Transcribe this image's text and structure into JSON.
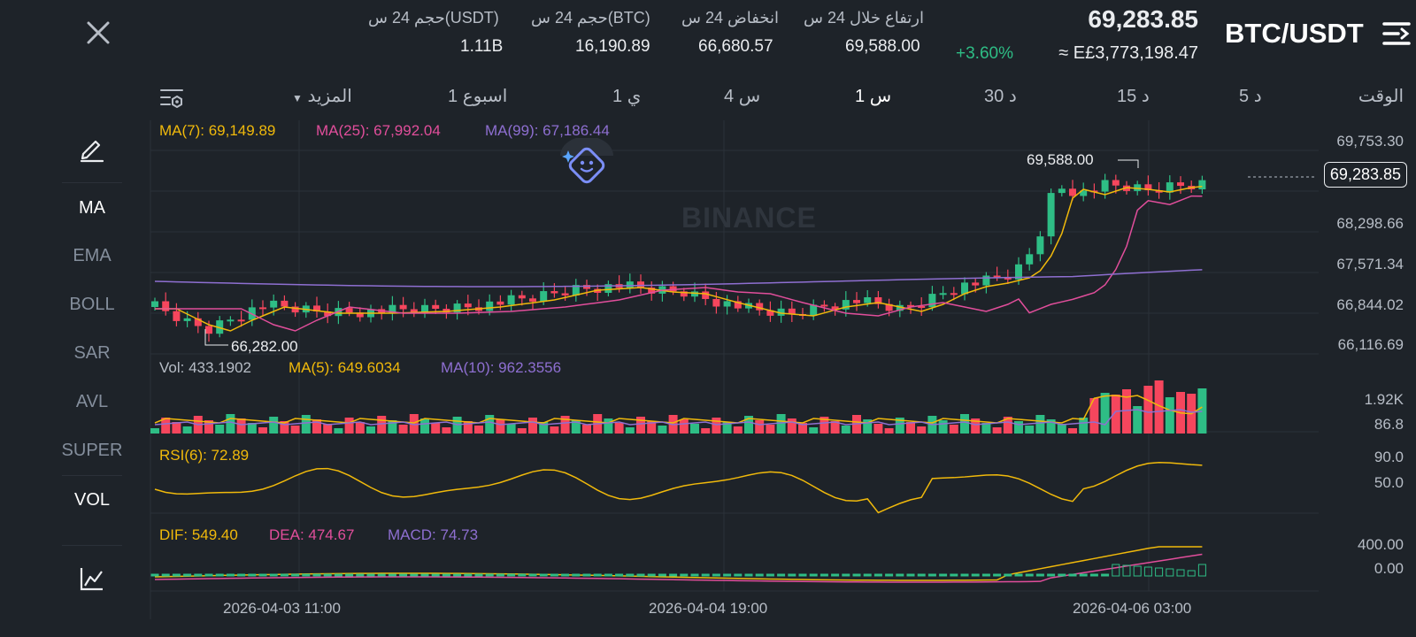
{
  "header": {
    "pair": "BTC/USDT",
    "price": "69,283.85",
    "change": "+3.60%",
    "fiat": "≈ E£3,773,198.47",
    "stats": [
      {
        "label": "ارتفاع خلال 24 س",
        "value": "69,588.00"
      },
      {
        "label": "انخفاض 24 س",
        "value": "66,680.57"
      },
      {
        "label": "حجم 24 س(BTC)",
        "value": "16,190.89"
      },
      {
        "label": "حجم 24 س(USDT)",
        "value": "1.11B"
      }
    ]
  },
  "timeframes": {
    "time_label": "الوقت",
    "items": [
      "5 د",
      "15 د",
      "30 د",
      "1 س",
      "4 س",
      "1 ي",
      "1 اسبوع"
    ],
    "more": "المزيد",
    "active": "1 س"
  },
  "sidebar": {
    "items": [
      "MA",
      "EMA",
      "BOLL",
      "SAR",
      "AVL",
      "SUPER",
      "VOL"
    ],
    "active": [
      "MA",
      "VOL"
    ]
  },
  "indicators": {
    "ma7": "MA(7): 69,149.89",
    "ma25": "MA(25): 67,992.04",
    "ma99": "MA(99): 67,186.44",
    "vol": "Vol: 433.1902",
    "vol_ma5": "MA(5): 649.6034",
    "vol_ma10": "MA(10): 962.3556",
    "rsi": "RSI(6): 72.89",
    "dif": "DIF: 549.40",
    "dea": "DEA: 474.67",
    "macd": "MACD: 74.73"
  },
  "watermark": "BINANCE",
  "chart_data": {
    "type": "candlestick",
    "price_axis": [
      "69,753.30",
      "68,298.66",
      "67,571.34",
      "66,844.02",
      "66,116.69"
    ],
    "current_price": "69,283.85",
    "high_label": "69,588.00",
    "low_label": "66,282.00",
    "volume_axis": [
      "1.92K",
      "86.8"
    ],
    "rsi_axis": [
      "90.0",
      "50.0"
    ],
    "macd_axis": [
      "400.00",
      "0.00"
    ],
    "x_labels": [
      "2026-04-03 11:00",
      "2026-04-04 19:00",
      "2026-04-06 03:00"
    ],
    "colors": {
      "up": "#2ebd85",
      "down": "#f6465d",
      "ma7": "#f0b90b",
      "ma25": "#e14e9b",
      "ma99": "#8e6fd1",
      "rsi": "#f0b90b"
    }
  }
}
